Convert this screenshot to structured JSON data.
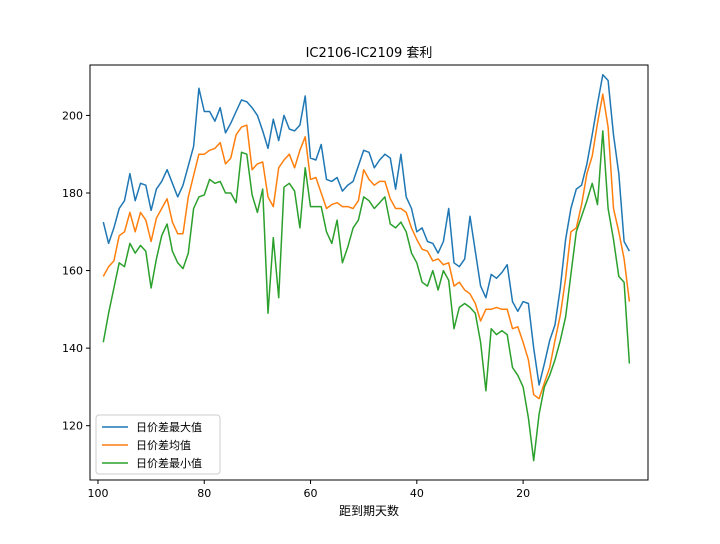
{
  "chart_data": {
    "type": "line",
    "title": "IC2106-IC2109 套利",
    "xlabel": "距到期天数",
    "ylabel": "",
    "x_inverted": true,
    "xlim": [
      101.5,
      -3.5
    ],
    "ylim": [
      106,
      213
    ],
    "x_ticks": [
      100,
      80,
      60,
      40,
      20
    ],
    "y_ticks": [
      120,
      140,
      160,
      180,
      200
    ],
    "grid": false,
    "legend_position": "lower-left",
    "x": [
      99,
      98,
      97,
      96,
      95,
      94,
      93,
      92,
      91,
      90,
      89,
      88,
      87,
      86,
      85,
      84,
      83,
      82,
      81,
      80,
      79,
      78,
      77,
      76,
      75,
      74,
      73,
      72,
      71,
      70,
      69,
      68,
      67,
      66,
      65,
      64,
      63,
      62,
      61,
      60,
      59,
      58,
      57,
      56,
      55,
      54,
      53,
      52,
      51,
      50,
      49,
      48,
      47,
      46,
      45,
      44,
      43,
      42,
      41,
      40,
      39,
      38,
      37,
      36,
      35,
      34,
      33,
      32,
      31,
      30,
      29,
      28,
      27,
      26,
      25,
      24,
      23,
      22,
      21,
      20,
      19,
      18,
      17,
      16,
      15,
      14,
      13,
      12,
      11,
      10,
      9,
      8,
      7,
      6,
      5,
      4,
      3,
      2,
      1,
      0
    ],
    "series": [
      {
        "name": "日价差最大值",
        "color": "#1f77b4",
        "values": [
          172.5,
          167,
          171,
          176,
          178,
          185,
          178,
          182.5,
          182,
          175.5,
          181,
          183,
          186,
          182.5,
          179,
          182,
          187,
          192,
          207,
          201,
          201,
          198.5,
          202,
          195.5,
          198,
          201,
          204,
          203.5,
          202,
          200,
          196,
          191.5,
          199,
          193.5,
          200,
          196.5,
          196,
          197.5,
          205,
          189,
          188.5,
          192.5,
          183.5,
          183,
          184,
          180.5,
          182,
          183,
          187,
          191,
          190.5,
          186.5,
          188.5,
          190,
          189,
          181,
          190,
          179,
          176,
          170,
          171,
          167.5,
          167,
          164.5,
          167.5,
          176,
          162,
          161,
          163,
          174,
          165,
          156,
          153,
          159,
          158,
          159.5,
          161.5,
          152,
          149.5,
          152,
          151.5,
          140,
          130.5,
          136,
          142,
          146,
          155.5,
          168,
          176,
          181,
          182,
          187.5,
          195,
          203,
          210.5,
          209,
          195,
          185,
          167.5,
          165
        ]
      },
      {
        "name": "日价差均值",
        "color": "#ff7f0e",
        "values": [
          158.5,
          161,
          162.5,
          169,
          170,
          175,
          170,
          175,
          173,
          167.5,
          173.5,
          176,
          178.5,
          172.5,
          169.5,
          169.5,
          179,
          184.5,
          190,
          190,
          191,
          191.5,
          193,
          187.5,
          189,
          195,
          197,
          197.5,
          186,
          187.5,
          188,
          179,
          176.5,
          186.5,
          188.5,
          190,
          186.5,
          191,
          194.5,
          183.5,
          184,
          180,
          176,
          177,
          177.5,
          176.5,
          176.5,
          176,
          178,
          186,
          183.5,
          182,
          183,
          183,
          178.5,
          176,
          176,
          175,
          171,
          168,
          165.5,
          165,
          162.5,
          163,
          161.5,
          162,
          156,
          157,
          155,
          154,
          151.5,
          147,
          150,
          150,
          150.5,
          150,
          150,
          145,
          145.5,
          141.5,
          137,
          128,
          127,
          131,
          135,
          142,
          148.5,
          158,
          170,
          171,
          177,
          185,
          189.5,
          198,
          205.5,
          197,
          176,
          170,
          163,
          152
        ]
      },
      {
        "name": "日价差最小值",
        "color": "#2ca02c",
        "values": [
          141.5,
          149,
          155.5,
          162,
          161,
          167,
          164.5,
          166.5,
          165,
          155.5,
          163,
          169,
          172,
          165,
          162,
          160.5,
          164.5,
          176,
          179,
          179.5,
          183.5,
          182.5,
          183,
          180,
          180,
          177.5,
          190.5,
          190,
          179.5,
          175,
          181,
          149,
          168.5,
          153,
          181.5,
          182.5,
          180.5,
          171,
          186.5,
          176.5,
          176.5,
          176.5,
          170,
          167,
          173,
          162,
          166,
          171,
          173,
          179,
          178,
          176,
          177.5,
          179,
          172,
          171,
          172.5,
          170,
          164.5,
          162,
          157,
          156,
          160,
          155,
          160,
          157.5,
          145,
          150.5,
          151.5,
          150.5,
          149,
          141.5,
          129,
          145,
          143.5,
          144.5,
          143.5,
          135,
          133,
          130,
          122,
          111,
          123,
          130,
          133,
          137,
          142,
          148,
          159,
          170,
          174,
          178,
          182.5,
          177,
          196,
          176,
          168,
          158.5,
          157,
          136
        ]
      }
    ]
  }
}
